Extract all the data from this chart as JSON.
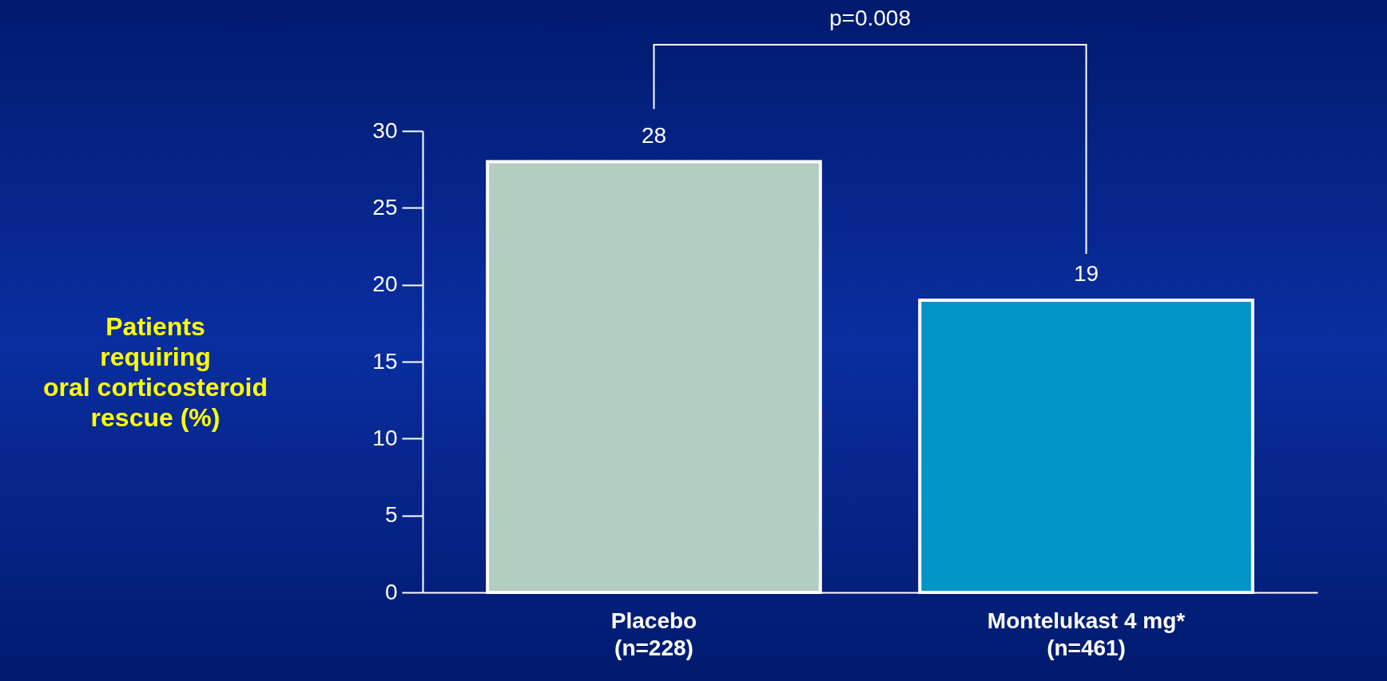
{
  "chart_data": {
    "type": "bar",
    "categories": [
      "Placebo\n(n=228)",
      "Montelukast 4 mg*\n(n=461)"
    ],
    "values": [
      28,
      19
    ],
    "colors": [
      "#b2cdc2",
      "#0094c8"
    ],
    "ylabel": "Patients\nrequiring\noral corticosteroid\nrescue (%)",
    "ylim": [
      0,
      30
    ],
    "yticks": [
      0,
      5,
      10,
      15,
      20,
      25,
      30
    ],
    "grid": false,
    "data_labels": true,
    "annotations": [
      "p=0.008"
    ]
  }
}
